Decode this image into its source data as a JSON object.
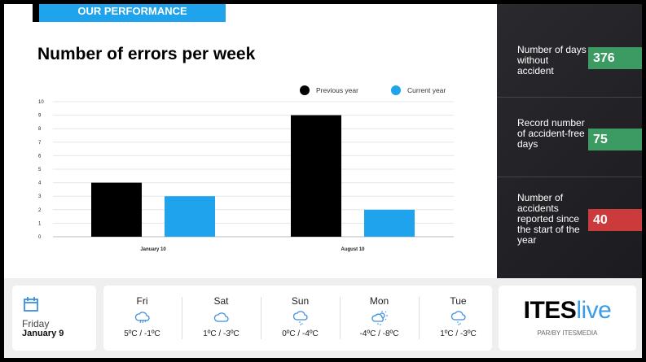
{
  "header": {
    "banner": "OUR PERFORMANCE",
    "title": "Number of errors per week"
  },
  "chart_data": {
    "type": "bar",
    "categories": [
      "January 10",
      "August 10"
    ],
    "series": [
      {
        "name": "Previous year",
        "values": [
          4,
          9
        ],
        "color": "#000000"
      },
      {
        "name": "Current year",
        "values": [
          3,
          2
        ],
        "color": "#1fa3ec"
      }
    ],
    "ylim": [
      0,
      10
    ],
    "yticks": [
      0,
      1,
      2,
      3,
      4,
      5,
      6,
      7,
      8,
      9,
      10
    ],
    "grid": true,
    "legend": "top-right"
  },
  "stats": [
    {
      "label": "Number of days without accident",
      "value": "376",
      "color": "#3c9a63"
    },
    {
      "label": "Record number of accident-free days",
      "value": "75",
      "color": "#3c9a63"
    },
    {
      "label": "Number of accidents reported since the start of the year",
      "value": "40",
      "color": "#cc3b3b"
    }
  ],
  "date": {
    "weekday": "Friday",
    "date": "January 9",
    "icon": "calendar-icon"
  },
  "weather": [
    {
      "day": "Fri",
      "temp": "5ºC / -1ºC",
      "icon": "rain-icon"
    },
    {
      "day": "Sat",
      "temp": "1ºC / -3ºC",
      "icon": "cloud-icon"
    },
    {
      "day": "Sun",
      "temp": "0ºC / -4ºC",
      "icon": "snow-icon"
    },
    {
      "day": "Mon",
      "temp": "-4ºC / -8ºC",
      "icon": "sun-snow-icon"
    },
    {
      "day": "Tue",
      "temp": "1ºC / -3ºC",
      "icon": "snow-icon"
    }
  ],
  "logo": {
    "part1": "ITES",
    "part2": "live",
    "sub": "PAR/BY ITESMEDIA"
  }
}
